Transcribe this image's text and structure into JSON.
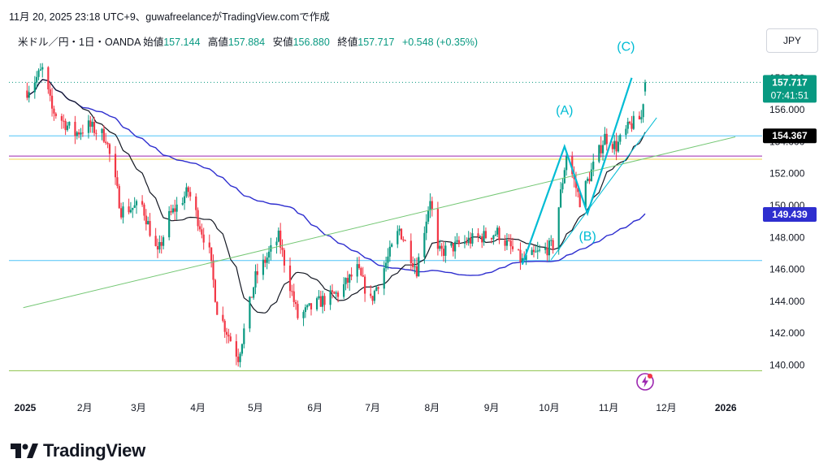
{
  "header": {
    "text": "11月 20, 2025 23:18 UTC+9、guwafreelanceがTradingView.comで作成"
  },
  "legend": {
    "symbol": "米ドル／円・1日・OANDA",
    "open_label": "始値",
    "open": "157.144",
    "high_label": "高値",
    "high": "157.884",
    "low_label": "安値",
    "low": "156.880",
    "close_label": "終値",
    "close": "157.717",
    "change": "+0.548 (+0.35%)"
  },
  "currency_button": "JPY",
  "brand": "TradingView",
  "colors": {
    "up": "#089981",
    "down": "#f23645",
    "ema_fast": "#131722",
    "ema_slow": "#2e2ecf",
    "wave": "#00bcd4",
    "trend": "#74c774",
    "purple_line": "#9c27b0",
    "yellow_line": "#f2d550",
    "hline_cyan": "#4fc3f7",
    "hline_green": "#8bc34a"
  },
  "chart_data": {
    "type": "candlestick",
    "symbol": "USDJPY",
    "timeframe": "1D",
    "y_axis_ticks": [
      "140.000",
      "142.000",
      "144.000",
      "146.000",
      "148.000",
      "150.000",
      "152.000",
      "154.000",
      "156.000",
      "158.000"
    ],
    "ylim": [
      139.2,
      159.0
    ],
    "x_axis_ticks": [
      "2025",
      "2月",
      "3月",
      "4月",
      "5月",
      "6月",
      "7月",
      "8月",
      "9月",
      "10月",
      "11月",
      "12月",
      "2026"
    ],
    "price_labels": [
      {
        "value": 157.717,
        "text": "157.717",
        "sub": "07:41:51",
        "kind": "last"
      },
      {
        "value": 154.367,
        "text": "154.367",
        "kind": "horizontal-line"
      },
      {
        "value": 149.439,
        "text": "149.439",
        "kind": "ma-slow"
      }
    ],
    "horizontal_lines": [
      {
        "value": 154.367,
        "color": "#4fc3f7"
      },
      {
        "value": 153.1,
        "color": "#9c27b0"
      },
      {
        "value": 152.9,
        "color": "#f2d550"
      },
      {
        "value": 146.55,
        "color": "#4fc3f7"
      },
      {
        "value": 139.65,
        "color": "#8bc34a"
      }
    ],
    "waypoints": [
      [
        "2025-01-02",
        157.2
      ],
      [
        "2025-01-10",
        158.5
      ],
      [
        "2025-01-15",
        156.0
      ],
      [
        "2025-01-27",
        154.5
      ],
      [
        "2025-02-03",
        155.0
      ],
      [
        "2025-02-12",
        154.3
      ],
      [
        "2025-02-20",
        149.7
      ],
      [
        "2025-03-03",
        150.0
      ],
      [
        "2025-03-11",
        146.9
      ],
      [
        "2025-03-17",
        149.3
      ],
      [
        "2025-03-27",
        150.9
      ],
      [
        "2025-04-07",
        147.0
      ],
      [
        "2025-04-11",
        143.5
      ],
      [
        "2025-04-22",
        140.5
      ],
      [
        "2025-05-01",
        145.5
      ],
      [
        "2025-05-13",
        148.0
      ],
      [
        "2025-05-23",
        143.0
      ],
      [
        "2025-06-04",
        144.0
      ],
      [
        "2025-06-13",
        144.5
      ],
      [
        "2025-06-23",
        146.0
      ],
      [
        "2025-06-30",
        144.0
      ],
      [
        "2025-07-15",
        148.5
      ],
      [
        "2025-07-24",
        146.0
      ],
      [
        "2025-07-31",
        150.5
      ],
      [
        "2025-08-04",
        147.0
      ],
      [
        "2025-08-20",
        147.8
      ],
      [
        "2025-09-04",
        148.3
      ],
      [
        "2025-09-17",
        146.5
      ],
      [
        "2025-10-03",
        147.5
      ],
      [
        "2025-10-10",
        153.2
      ],
      [
        "2025-10-17",
        150.3
      ],
      [
        "2025-10-30",
        154.3
      ],
      [
        "2025-11-05",
        153.7
      ],
      [
        "2025-11-12",
        155.0
      ],
      [
        "2025-11-18",
        155.5
      ],
      [
        "2025-11-20",
        157.717
      ]
    ],
    "last_candle": {
      "date": "2025-11-20",
      "open": 157.144,
      "high": 157.884,
      "low": 156.88,
      "close": 157.717
    },
    "elliott_wave": {
      "labels": [
        {
          "text": "(A)",
          "date": "2025-10-09",
          "value": 155.7
        },
        {
          "text": "(B)",
          "date": "2025-10-21",
          "value": 147.8
        },
        {
          "text": "(C)",
          "date": "2025-11-10",
          "value": 159.7
        }
      ],
      "path": [
        [
          "2025-09-17",
          146.3
        ],
        [
          "2025-10-09",
          153.7
        ],
        [
          "2025-10-21",
          149.5
        ],
        [
          "2025-11-13",
          158.0
        ]
      ]
    },
    "channel_line": {
      "from": [
        "2025-10-02",
        146.6
      ],
      "to": [
        "2025-11-26",
        155.5
      ]
    },
    "trend_line": {
      "from": [
        "2024-12-31",
        143.6
      ],
      "to": [
        "2026-01-06",
        154.3
      ]
    },
    "ma_fast_period": 20,
    "ma_slow_period": 100
  }
}
